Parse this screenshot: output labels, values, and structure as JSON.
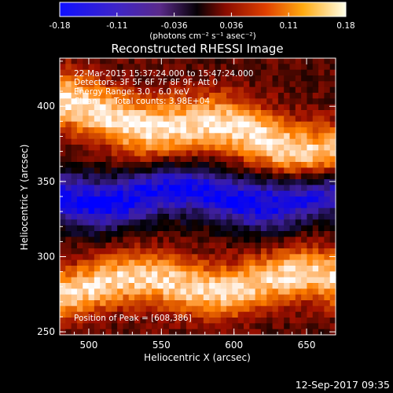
{
  "chart_data": {
    "type": "heatmap",
    "title": "Reconstructed RHESSI Image",
    "xlabel": "Heliocentric X (arcsec)",
    "ylabel": "Heliocentric Y (arcsec)",
    "xlim": [
      480,
      670
    ],
    "ylim": [
      248,
      432
    ],
    "xticks": [
      500,
      550,
      600,
      650
    ],
    "yticks": [
      250,
      300,
      350,
      400
    ],
    "colorbar": {
      "ticks": [
        "-0.18",
        "-0.11",
        "-0.036",
        "0.036",
        "0.11",
        "0.18"
      ],
      "range": [
        -0.18,
        0.18
      ],
      "units": "(photons cm⁻² s⁻¹ asec⁻²)"
    },
    "annotations": {
      "time": "22-Mar-2015 15:37:24.000 to 15:47:24.000",
      "detectors": "Detectors: 3F 5F 6F 7F 8F 9F, Att 0",
      "energy": "Energy Range: 3.0 - 6.0 keV",
      "clean": "Clean",
      "counts": "Total counts: 3.98E+04",
      "peak": "Position of Peak = [608,386]"
    },
    "bands": [
      {
        "name": "",
        "y_center_at_x480": 400,
        "slope": -0.16,
        "width": 20,
        "peak_value": 0.17
      },
      {
        "name": "",
        "y_center_at_x480": 340,
        "slope": 0.0,
        "width": 18,
        "peak_value": -0.17
      },
      {
        "name": "",
        "y_center_at_x480": 280,
        "slope": 0.02,
        "width": 18,
        "peak_value": 0.16
      }
    ],
    "peak_position": [
      608,
      386
    ],
    "grid": false,
    "colormap": [
      "#0000ff",
      "#4020a0",
      "#000000",
      "#a01000",
      "#ff8000",
      "#ffffff"
    ]
  },
  "footer": {
    "timestamp": "12-Sep-2017 09:35"
  }
}
